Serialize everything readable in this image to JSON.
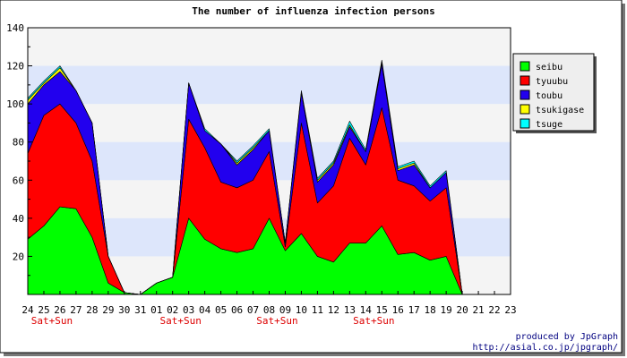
{
  "chart_data": {
    "type": "area",
    "stacked": true,
    "title": "The number of influenza infection persons",
    "categories": [
      "24",
      "25",
      "26",
      "27",
      "28",
      "29",
      "30",
      "31",
      "01",
      "02",
      "03",
      "04",
      "05",
      "06",
      "07",
      "08",
      "09",
      "10",
      "11",
      "12",
      "13",
      "14",
      "15",
      "16",
      "17",
      "18",
      "19",
      "20",
      "21",
      "22",
      "23"
    ],
    "ylim": [
      0,
      140
    ],
    "yticks": [
      20,
      40,
      60,
      80,
      100,
      120,
      140
    ],
    "weekend_markers": [
      {
        "after_index": 1,
        "label": "Sat+Sun"
      },
      {
        "after_index": 9,
        "label": "Sat+Sun"
      },
      {
        "after_index": 15,
        "label": "Sat+Sun"
      },
      {
        "after_index": 21,
        "label": "Sat+Sun"
      }
    ],
    "series": [
      {
        "name": "seibu",
        "color": "#00ff00",
        "values": [
          29,
          36,
          46,
          45,
          30,
          6,
          1,
          0,
          6,
          9,
          40,
          29,
          24,
          22,
          24,
          40,
          23,
          32,
          20,
          17,
          27,
          27,
          36,
          21,
          22,
          18,
          20,
          0,
          0,
          0,
          0
        ]
      },
      {
        "name": "tyuubu",
        "color": "#ff0000",
        "values": [
          45,
          58,
          54,
          45,
          40,
          14,
          0,
          0,
          0,
          0,
          52,
          48,
          35,
          34,
          36,
          35,
          2,
          58,
          28,
          40,
          55,
          41,
          62,
          39,
          35,
          31,
          36,
          0,
          0,
          0,
          0
        ]
      },
      {
        "name": "toubu",
        "color": "#2200ee",
        "values": [
          26,
          16,
          17,
          17,
          20,
          0,
          0,
          0,
          0,
          0,
          19,
          9,
          20,
          12,
          16,
          11,
          2,
          16,
          11,
          11,
          6,
          7,
          23,
          5,
          11,
          7,
          8,
          0,
          0,
          0,
          0
        ]
      },
      {
        "name": "tsukigase",
        "color": "#ffff00",
        "values": [
          2,
          1,
          2,
          0,
          0,
          0,
          0,
          0,
          0,
          0,
          0,
          0,
          0,
          1,
          1,
          0,
          0,
          0,
          1,
          1,
          1,
          0,
          1,
          1,
          1,
          0,
          0,
          0,
          0,
          0,
          0
        ]
      },
      {
        "name": "tsuge",
        "color": "#00ffff",
        "values": [
          1,
          1,
          1,
          0,
          0,
          0,
          0,
          0,
          0,
          0,
          0,
          1,
          0,
          1,
          1,
          1,
          0,
          1,
          1,
          1,
          2,
          1,
          1,
          1,
          1,
          1,
          1,
          0,
          0,
          0,
          0
        ]
      }
    ],
    "grid_bands": true,
    "legend_position": "right"
  },
  "credits": {
    "line1": "produced by JpGraph",
    "line2": "http://asial.co.jp/jpgraph/"
  }
}
